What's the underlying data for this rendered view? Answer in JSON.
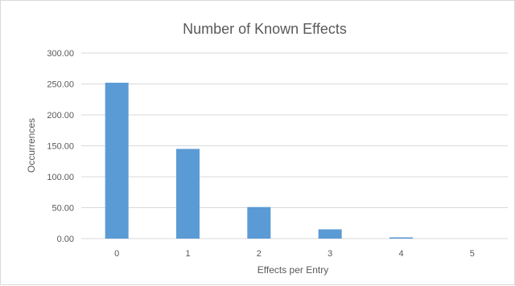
{
  "chart_data": {
    "type": "bar",
    "title": "Number of Known Effects",
    "xlabel": "Effects per Entry",
    "ylabel": "Occurrences",
    "categories": [
      "0",
      "1",
      "2",
      "3",
      "4",
      "5"
    ],
    "values": [
      252,
      145,
      51,
      15,
      2,
      0
    ],
    "ylim": [
      0,
      300
    ],
    "yticks": [
      "0.00",
      "50.00",
      "100.00",
      "150.00",
      "200.00",
      "250.00",
      "300.00"
    ],
    "grid": true,
    "legend": "none",
    "bar_color": "#5b9bd5",
    "grid_color": "#d9d9d9",
    "text_color": "#595959"
  }
}
